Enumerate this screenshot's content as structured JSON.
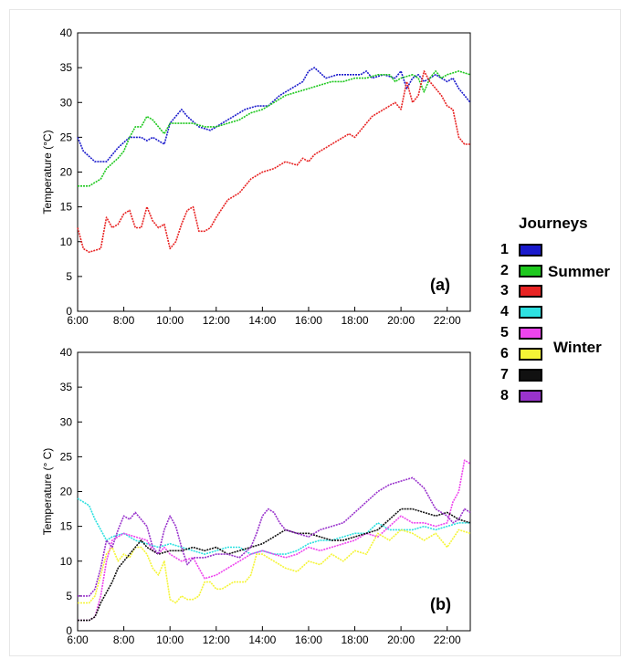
{
  "chart_data": [
    {
      "type": "line",
      "panel_label": "(a)",
      "ylabel": "Temperature (°C)",
      "xlabel": "",
      "ylim": [
        0,
        40
      ],
      "yticks": [
        "0",
        "5",
        "10",
        "15",
        "20",
        "25",
        "30",
        "35",
        "40"
      ],
      "xlim": [
        "6:00",
        "23:00"
      ],
      "xticks": [
        "6:00",
        "8:00",
        "10:00",
        "12:00",
        "14:00",
        "16:00",
        "18:00",
        "20:00",
        "22:00"
      ],
      "series": [
        {
          "name": "1",
          "color": "#1a1acc",
          "x": [
            "6:00",
            "6:15",
            "6:45",
            "7:15",
            "7:45",
            "8:15",
            "8:45",
            "9:00",
            "9:15",
            "9:45",
            "10:00",
            "10:30",
            "10:45",
            "11:15",
            "11:45",
            "12:15",
            "12:45",
            "13:15",
            "13:45",
            "14:15",
            "14:45",
            "15:15",
            "15:45",
            "16:00",
            "16:15",
            "16:45",
            "17:15",
            "17:45",
            "18:15",
            "18:30",
            "18:45",
            "19:15",
            "19:45",
            "20:00",
            "20:15",
            "20:30",
            "20:45",
            "21:00",
            "21:30",
            "21:45",
            "22:00",
            "22:15",
            "22:30",
            "22:45",
            "23:00"
          ],
          "y": [
            25,
            23,
            21.5,
            21.5,
            23.5,
            25,
            25,
            24.5,
            25,
            24,
            27,
            29,
            28,
            26.5,
            26,
            27,
            28,
            29,
            29.5,
            29.5,
            31,
            32,
            33,
            34.5,
            35,
            33.5,
            34,
            34,
            34,
            34.5,
            33.5,
            34,
            33.5,
            34.5,
            32,
            33.5,
            34,
            33,
            34,
            33.5,
            33,
            33.5,
            32,
            31,
            30
          ]
        },
        {
          "name": "2",
          "color": "#1ec81e",
          "x": [
            "6:00",
            "6:30",
            "6:45",
            "7:00",
            "7:15",
            "7:45",
            "8:00",
            "8:15",
            "8:30",
            "8:45",
            "9:00",
            "9:15",
            "9:30",
            "9:45",
            "10:00",
            "10:30",
            "11:00",
            "11:30",
            "12:00",
            "12:30",
            "13:00",
            "13:30",
            "14:00",
            "14:30",
            "15:00",
            "15:30",
            "16:00",
            "16:30",
            "17:00",
            "17:30",
            "18:00",
            "18:30",
            "19:00",
            "19:30",
            "19:45",
            "20:00",
            "20:30",
            "20:45",
            "21:00",
            "21:15",
            "21:30",
            "21:45",
            "22:00",
            "22:30",
            "23:00"
          ],
          "y": [
            18,
            18,
            18.5,
            19,
            20.5,
            22,
            23,
            25,
            26.5,
            26.5,
            28,
            27.5,
            26.5,
            25.5,
            27,
            27,
            27,
            26.5,
            26.5,
            27,
            27.5,
            28.5,
            29,
            30,
            31,
            31.5,
            32,
            32.5,
            33,
            33,
            33.5,
            33.5,
            34,
            34,
            33,
            33.5,
            34,
            33.5,
            31.5,
            33.5,
            34.5,
            33.5,
            34,
            34.5,
            34
          ]
        },
        {
          "name": "3",
          "color": "#e82424",
          "x": [
            "6:00",
            "6:15",
            "6:30",
            "7:00",
            "7:15",
            "7:30",
            "7:45",
            "8:00",
            "8:15",
            "8:30",
            "8:45",
            "9:00",
            "9:15",
            "9:30",
            "9:45",
            "10:00",
            "10:15",
            "10:30",
            "10:45",
            "11:00",
            "11:15",
            "11:30",
            "11:45",
            "12:00",
            "12:30",
            "13:00",
            "13:30",
            "13:45",
            "14:00",
            "14:30",
            "15:00",
            "15:30",
            "15:45",
            "16:00",
            "16:15",
            "16:30",
            "17:00",
            "17:30",
            "17:45",
            "18:00",
            "18:15",
            "18:30",
            "18:45",
            "19:00",
            "19:30",
            "19:45",
            "20:00",
            "20:15",
            "20:30",
            "20:45",
            "21:00",
            "21:15",
            "21:30",
            "21:45",
            "22:00",
            "22:15",
            "22:30",
            "22:45",
            "23:00"
          ],
          "y": [
            12,
            9,
            8.5,
            9,
            13.5,
            12,
            12.5,
            14,
            14.5,
            12,
            12,
            15,
            13,
            12,
            12.5,
            9,
            10,
            12.5,
            14.5,
            15,
            11.5,
            11.5,
            12,
            13.5,
            16,
            17,
            19,
            19.5,
            20,
            20.5,
            21.5,
            21,
            22,
            21.5,
            22.5,
            23,
            24,
            25,
            25.5,
            25,
            26,
            27,
            28,
            28.5,
            29.5,
            30,
            29,
            33,
            30,
            31,
            34.5,
            33,
            32,
            31,
            29.5,
            29,
            25,
            24,
            24
          ]
        }
      ]
    },
    {
      "type": "line",
      "panel_label": "(b)",
      "ylabel": "Temperature (° C)",
      "xlabel": "",
      "ylim": [
        0,
        40
      ],
      "yticks": [
        "0",
        "5",
        "10",
        "15",
        "20",
        "25",
        "30",
        "35",
        "40"
      ],
      "xlim": [
        "6:00",
        "23:00"
      ],
      "xticks": [
        "6:00",
        "8:00",
        "10:00",
        "12:00",
        "14:00",
        "16:00",
        "18:00",
        "20:00",
        "22:00"
      ],
      "series": [
        {
          "name": "4",
          "color": "#2ee0e0",
          "x": [
            "6:00",
            "6:30",
            "6:45",
            "7:00",
            "7:15",
            "7:30",
            "8:00",
            "8:30",
            "9:00",
            "9:30",
            "10:00",
            "10:30",
            "11:00",
            "11:30",
            "12:00",
            "12:30",
            "13:00",
            "13:30",
            "14:00",
            "14:30",
            "15:00",
            "15:30",
            "16:00",
            "16:30",
            "17:00",
            "17:30",
            "18:00",
            "18:30",
            "19:00",
            "19:30",
            "20:00",
            "20:30",
            "21:00",
            "21:30",
            "22:00",
            "22:30",
            "23:00"
          ],
          "y": [
            19,
            18,
            16,
            14.5,
            13,
            13.5,
            14,
            13,
            12.5,
            12,
            12.5,
            12,
            11.5,
            11,
            11.5,
            12,
            12,
            11,
            11.5,
            11,
            11,
            11.5,
            12.5,
            13,
            13,
            13.5,
            14,
            14,
            15.5,
            14.5,
            14.5,
            14.5,
            15,
            14.5,
            15,
            15.5,
            15.5
          ]
        },
        {
          "name": "5",
          "color": "#ee44ee",
          "x": [
            "6:00",
            "6:30",
            "6:45",
            "7:00",
            "7:15",
            "7:30",
            "8:00",
            "8:30",
            "9:00",
            "9:15",
            "9:30",
            "9:45",
            "10:00",
            "10:30",
            "11:00",
            "11:15",
            "11:30",
            "12:00",
            "12:30",
            "13:00",
            "13:30",
            "14:00",
            "14:30",
            "15:00",
            "15:30",
            "16:00",
            "16:30",
            "17:00",
            "17:30",
            "18:00",
            "18:30",
            "19:00",
            "19:30",
            "20:00",
            "20:30",
            "21:00",
            "21:30",
            "22:00",
            "22:15",
            "22:30",
            "22:45",
            "23:00"
          ],
          "y": [
            1.5,
            1.5,
            2,
            5,
            10,
            13,
            14,
            13.5,
            13,
            11.5,
            11,
            12,
            11,
            10,
            10.5,
            9,
            7.5,
            8,
            9,
            10,
            11,
            11.5,
            11,
            10.5,
            11,
            12,
            11.5,
            12,
            12.5,
            13,
            14,
            13.5,
            15,
            16.5,
            15.5,
            15.5,
            15,
            15.5,
            18.5,
            20,
            24.5,
            24
          ]
        },
        {
          "name": "6",
          "color": "#f5f536",
          "x": [
            "6:00",
            "6:30",
            "6:45",
            "7:00",
            "7:15",
            "7:30",
            "7:45",
            "8:00",
            "8:15",
            "8:30",
            "8:45",
            "9:00",
            "9:15",
            "9:30",
            "9:45",
            "10:00",
            "10:15",
            "10:30",
            "10:45",
            "11:00",
            "11:15",
            "11:30",
            "11:45",
            "12:00",
            "12:15",
            "12:30",
            "12:45",
            "13:00",
            "13:15",
            "13:30",
            "13:45",
            "14:00",
            "14:30",
            "15:00",
            "15:30",
            "16:00",
            "16:30",
            "17:00",
            "17:30",
            "18:00",
            "18:30",
            "19:00",
            "19:30",
            "20:00",
            "20:30",
            "21:00",
            "21:30",
            "22:00",
            "22:30",
            "23:00"
          ],
          "y": [
            4,
            4,
            5,
            8,
            11,
            12,
            10,
            11,
            10.5,
            12,
            12,
            11,
            9,
            8,
            10,
            4.5,
            4,
            5,
            4.5,
            4.5,
            5,
            7,
            7,
            6,
            6,
            6.5,
            7,
            7,
            7,
            8,
            11,
            11,
            10,
            9,
            8.5,
            10,
            9.5,
            11,
            10,
            11.5,
            11,
            14,
            13,
            14.5,
            14,
            13,
            14,
            12,
            14.5,
            14
          ]
        },
        {
          "name": "7",
          "color": "#111111",
          "x": [
            "6:00",
            "6:15",
            "6:30",
            "6:45",
            "7:00",
            "7:15",
            "7:30",
            "7:45",
            "8:00",
            "8:15",
            "8:30",
            "8:45",
            "9:00",
            "9:30",
            "10:00",
            "10:30",
            "11:00",
            "11:30",
            "12:00",
            "12:30",
            "13:00",
            "13:30",
            "14:00",
            "14:30",
            "15:00",
            "15:30",
            "16:00",
            "16:30",
            "17:00",
            "17:30",
            "18:00",
            "18:30",
            "19:00",
            "19:30",
            "20:00",
            "20:30",
            "21:00",
            "21:30",
            "22:00",
            "22:30",
            "23:00"
          ],
          "y": [
            1.5,
            1.5,
            1.5,
            2,
            4,
            5.5,
            7,
            9,
            10,
            11,
            12,
            13,
            12,
            11,
            11.5,
            11.5,
            12,
            11.5,
            12,
            11,
            11.5,
            12,
            12.5,
            13.5,
            14.5,
            14,
            14,
            13.5,
            13,
            13,
            13.5,
            14,
            14.5,
            16,
            17.5,
            17.5,
            17,
            16.5,
            17,
            16,
            15.5
          ]
        },
        {
          "name": "8",
          "color": "#9933cc",
          "x": [
            "6:00",
            "6:30",
            "6:45",
            "7:00",
            "7:15",
            "7:30",
            "7:45",
            "8:00",
            "8:15",
            "8:30",
            "8:45",
            "9:00",
            "9:15",
            "9:30",
            "9:45",
            "10:00",
            "10:15",
            "10:30",
            "10:45",
            "11:00",
            "11:30",
            "12:00",
            "12:30",
            "13:00",
            "13:30",
            "13:45",
            "14:00",
            "14:15",
            "14:30",
            "14:45",
            "15:00",
            "15:30",
            "16:00",
            "16:30",
            "17:00",
            "17:30",
            "18:00",
            "18:30",
            "19:00",
            "19:30",
            "20:00",
            "20:30",
            "21:00",
            "21:15",
            "21:30",
            "22:00",
            "22:15",
            "22:30",
            "22:45",
            "23:00"
          ],
          "y": [
            5,
            5,
            6,
            9,
            13,
            12,
            14.5,
            16.5,
            16,
            17,
            16,
            15,
            12,
            11,
            14.5,
            16.5,
            15,
            12,
            9.5,
            10.5,
            10.5,
            11,
            11,
            10.5,
            12,
            14,
            16.5,
            17.5,
            17,
            15.5,
            14.5,
            14,
            13.5,
            14.5,
            15,
            15.5,
            17,
            18.5,
            20,
            21,
            21.5,
            22,
            20.5,
            19,
            17.5,
            16.5,
            15.5,
            16,
            17.5,
            17
          ]
        }
      ]
    }
  ],
  "legend": {
    "title": "Journeys",
    "items": [
      {
        "label": "1",
        "color": "#1a1acc"
      },
      {
        "label": "2",
        "color": "#1ec81e"
      },
      {
        "label": "3",
        "color": "#e82424"
      },
      {
        "label": "4",
        "color": "#2ee0e0"
      },
      {
        "label": "5",
        "color": "#ee44ee"
      },
      {
        "label": "6",
        "color": "#f5f536"
      },
      {
        "label": "7",
        "color": "#111111"
      },
      {
        "label": "8",
        "color": "#9933cc"
      }
    ],
    "summer_label": "Summer",
    "winter_label": "Winter"
  }
}
